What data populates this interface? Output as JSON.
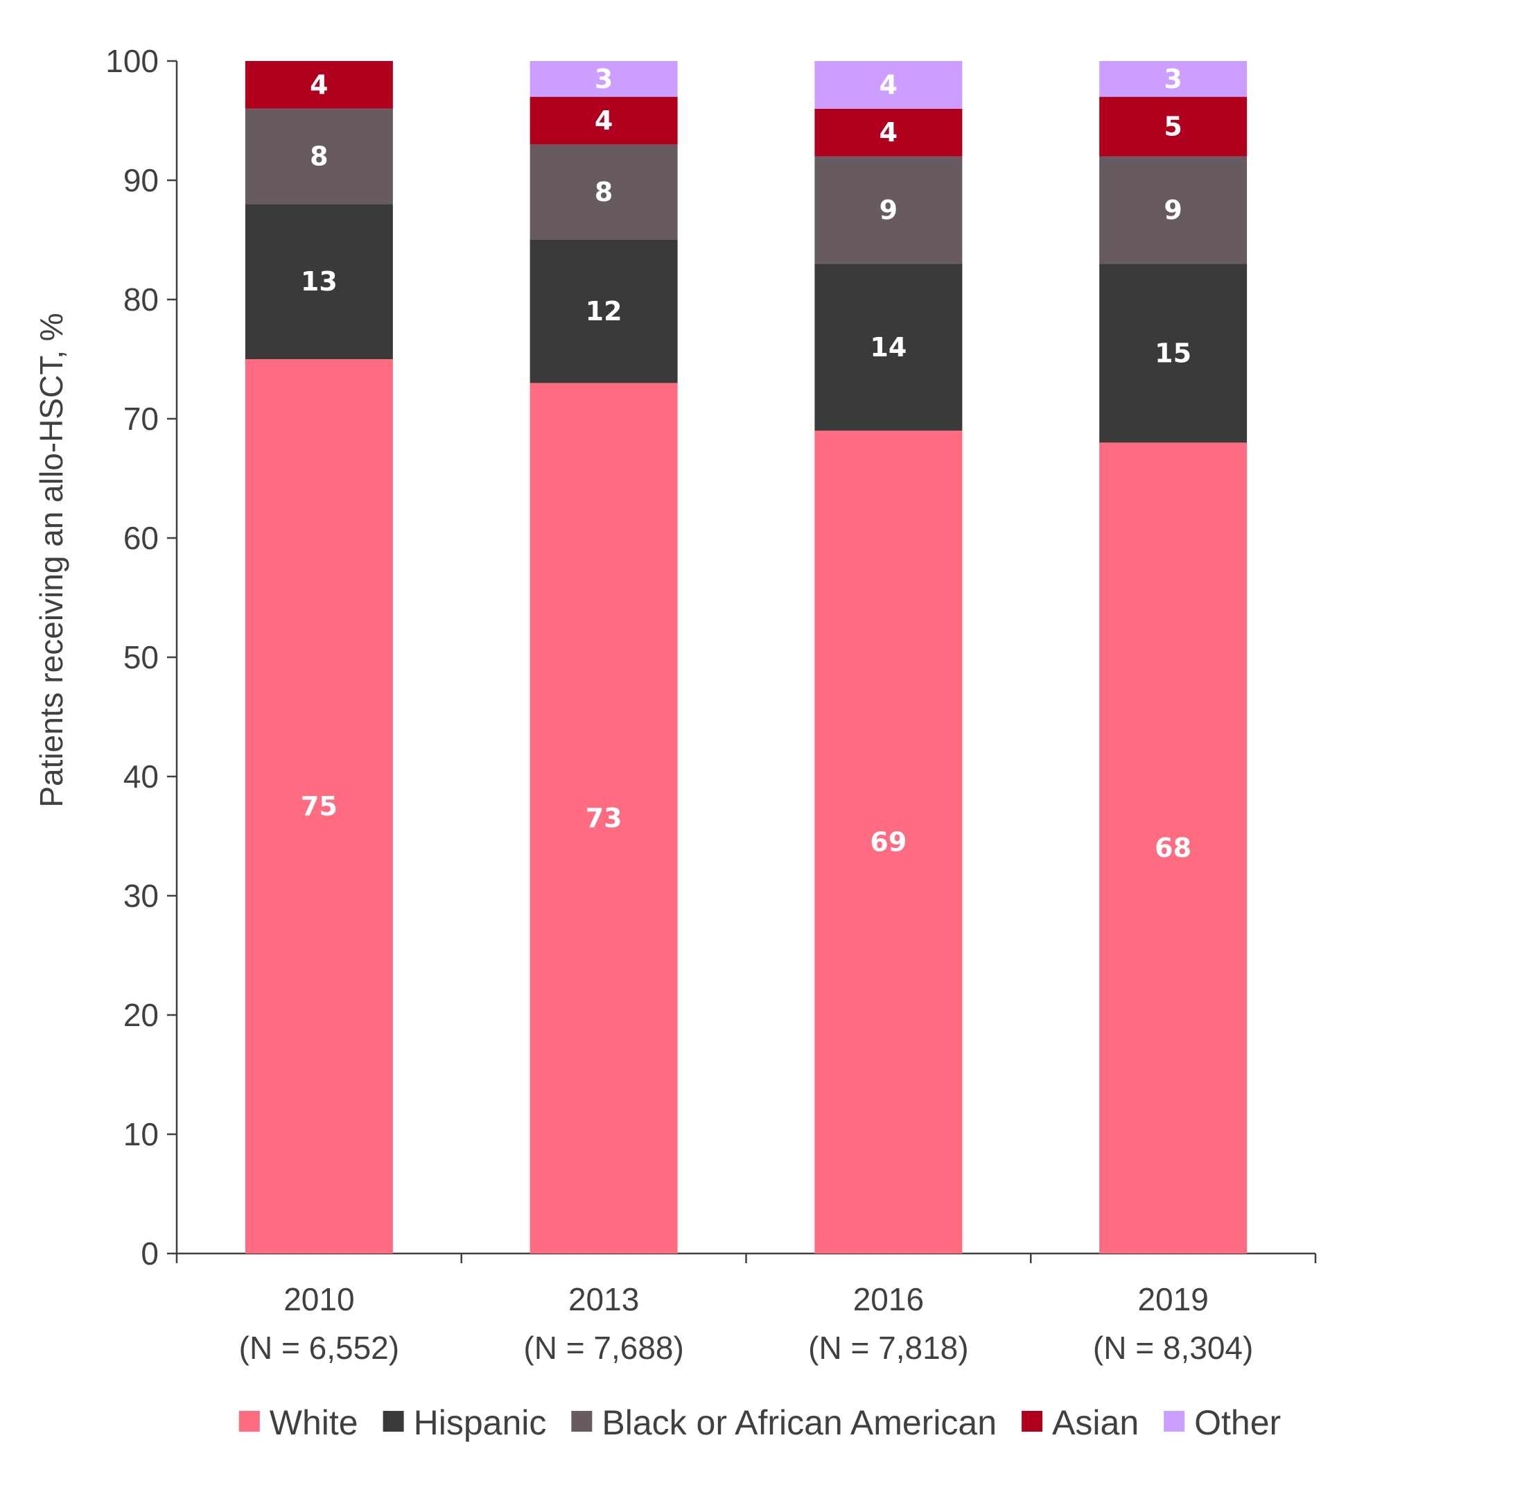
{
  "chart_data": {
    "type": "bar",
    "stacked": true,
    "ylabel": "Patients receiving an allo-HSCT, %",
    "xlabel": "",
    "ylim": [
      0,
      100
    ],
    "yticks": [
      0,
      10,
      20,
      30,
      40,
      50,
      60,
      70,
      80,
      90,
      100
    ],
    "categories": [
      {
        "year": "2010",
        "n": "(N = 6,552)"
      },
      {
        "year": "2013",
        "n": "(N = 7,688)"
      },
      {
        "year": "2016",
        "n": "(N = 7,818)"
      },
      {
        "year": "2019",
        "n": "(N = 8,304)"
      }
    ],
    "series": [
      {
        "name": "White",
        "color": "#ff6b80",
        "values": [
          75,
          73,
          69,
          68
        ]
      },
      {
        "name": "Hispanic",
        "color": "#3a3a3a",
        "values": [
          13,
          12,
          14,
          15
        ]
      },
      {
        "name": "Black or African American",
        "color": "#675b61",
        "values": [
          8,
          8,
          9,
          9
        ]
      },
      {
        "name": "Asian",
        "color": "#b0001e",
        "values": [
          4,
          4,
          4,
          5
        ]
      },
      {
        "name": "Other",
        "color": "#cc9eff",
        "values": [
          0,
          3,
          4,
          3
        ]
      }
    ],
    "data_labels": true,
    "legend_position": "bottom",
    "grid": false
  }
}
